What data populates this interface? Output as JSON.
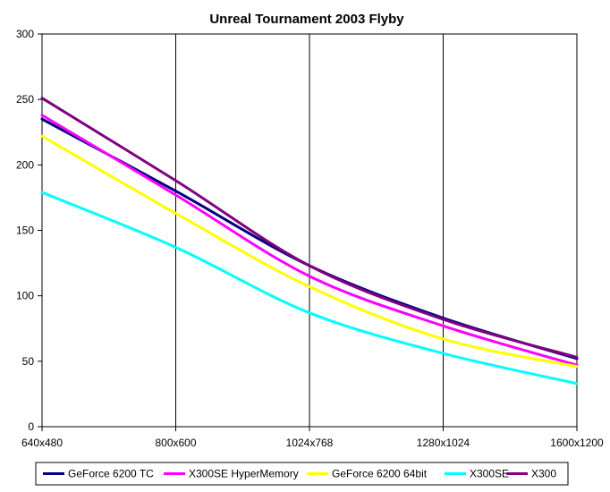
{
  "chart_data": {
    "type": "line",
    "title": "Unreal Tournament 2003 Flyby",
    "xlabel": "",
    "ylabel": "",
    "categories": [
      "640x480",
      "800x600",
      "1024x768",
      "1280x1024",
      "1600x1200"
    ],
    "ylim": [
      0,
      300
    ],
    "yticks": [
      0,
      50,
      100,
      150,
      200,
      250,
      300
    ],
    "grid": "vertical",
    "legend_position": "bottom",
    "series": [
      {
        "name": "GeForce 6200 TC",
        "color": "#000080",
        "values": [
          235,
          180,
          123,
          83,
          52
        ]
      },
      {
        "name": "X300SE HyperMemory",
        "color": "#FF00FF",
        "values": [
          238,
          177,
          115,
          77,
          47
        ]
      },
      {
        "name": "GeForce 6200 64bit",
        "color": "#FFFF00",
        "values": [
          222,
          163,
          107,
          67,
          46
        ]
      },
      {
        "name": "X300SE",
        "color": "#00FFFF",
        "values": [
          179,
          137,
          87,
          56,
          33
        ]
      },
      {
        "name": "X300",
        "color": "#800080",
        "values": [
          251,
          188,
          123,
          82,
          53
        ]
      }
    ]
  }
}
